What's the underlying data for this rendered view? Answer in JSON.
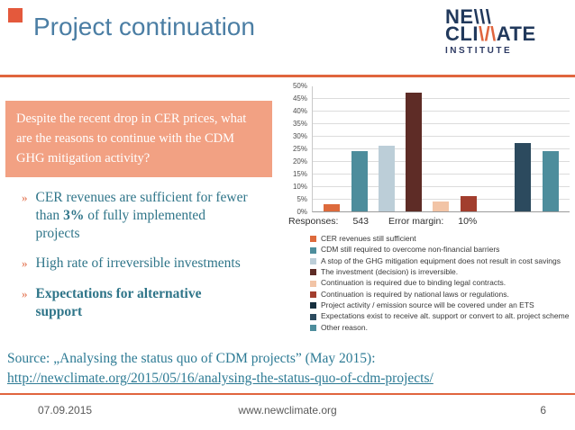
{
  "slide": {
    "title": "Project continuation",
    "bullet_marker": "»",
    "question_box": "Despite the recent drop in CER prices, what are the reasons to continue with the CDM GHG mitigation activity?",
    "bullets": [
      {
        "segments": [
          {
            "t": "CER revenues are sufficient for fewer than ",
            "b": false
          },
          {
            "t": "3%",
            "b": true
          },
          {
            "t": " of fully implemented projects",
            "b": false
          }
        ]
      },
      {
        "segments": [
          {
            "t": "High rate of irreversible investments",
            "b": false
          }
        ]
      },
      {
        "segments": [
          {
            "t": "Expectations for alternative support",
            "b": true
          }
        ]
      }
    ],
    "logo": {
      "line1_prefix": "NE",
      "line1_slashes": "\\\\\\",
      "line2_prefix": "CLI",
      "line2_slashes": "\\/\\",
      "line2_suffix": "ATE",
      "subtitle": "INSTITUTE"
    },
    "source": {
      "line1": "Source: „Analysing the status quo of CDM projects” (May 2015):",
      "link": "http://newclimate.org/2015/05/16/analysing-the-status-quo-of-cdm-projects/"
    },
    "footer": {
      "date": "07.09.2015",
      "website": "www.newclimate.org",
      "page_number": "6"
    },
    "colors": {
      "accent_orange": "#E0653E",
      "title_blue": "#4B7EA4",
      "body_teal": "#2F7589",
      "box_salmon": "#F2A183",
      "logo_navy": "#21395C"
    }
  },
  "chart_data": {
    "type": "bar",
    "title": "",
    "xlabel": "",
    "ylabel": "",
    "ylim": [
      0,
      50
    ],
    "grid": true,
    "legend_position": "bottom",
    "yticks": [
      "0%",
      "5%",
      "10%",
      "15%",
      "20%",
      "25%",
      "30%",
      "35%",
      "40%",
      "45%",
      "50%"
    ],
    "responses": {
      "label": "Responses:",
      "value": "543",
      "error_label": "Error margin:",
      "error_value": "10%"
    },
    "series": [
      {
        "name": "CER revenues still sufficient",
        "value": 3,
        "color": "#DD6A3C"
      },
      {
        "name": "CDM still required to overcome non-financial barriers",
        "value": 24,
        "color": "#4D8D9C"
      },
      {
        "name": "A stop of the GHG mitigation equipment does not result in cost savings",
        "value": 26,
        "color": "#BCCED8"
      },
      {
        "name": "The investment (decision) is irreversible.",
        "value": 47,
        "color": "#5E2C26"
      },
      {
        "name": "Continuation is required due to binding legal contracts.",
        "value": 4,
        "color": "#F2C4A6"
      },
      {
        "name": "Continuation is required by national laws or regulations.",
        "value": 6,
        "color": "#A23E2E"
      },
      {
        "name": "Project activity / emission source will be covered under an ETS",
        "value": 0,
        "color": "#16303F"
      },
      {
        "name": "Expectations exist to receive alt. support or convert to alt. project scheme",
        "value": 27,
        "color": "#2C4A5E"
      },
      {
        "name": "Other reason.",
        "value": 24,
        "color": "#4D8D9C"
      }
    ]
  }
}
